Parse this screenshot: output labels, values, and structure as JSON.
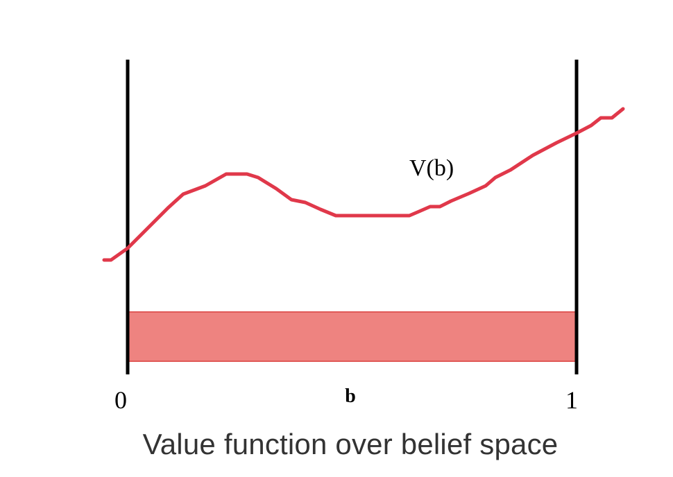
{
  "diagram": {
    "curve_label": "V(b)",
    "axis_label": "b",
    "left_tick": "0",
    "right_tick": "1",
    "colors": {
      "curve": "#e0384a",
      "band_fill": "#ee8380",
      "band_stroke": "#e05a58",
      "boundary": "#000000"
    }
  },
  "caption": "Value function over belief space"
}
